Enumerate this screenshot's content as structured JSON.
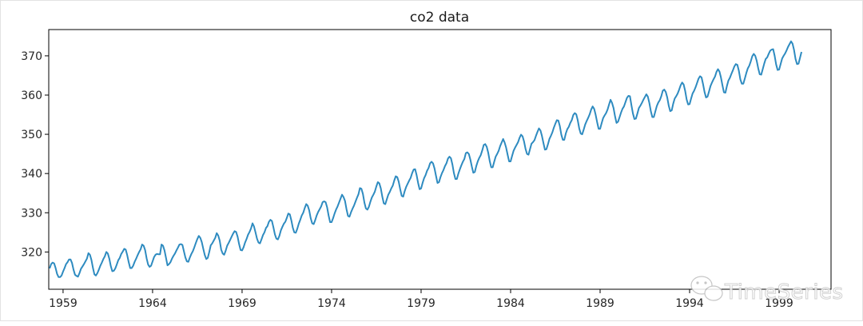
{
  "chart_data": {
    "type": "line",
    "title": "co2 data",
    "xlabel": "",
    "ylabel": "",
    "series": [
      {
        "name": "co2",
        "color": "#2e8bc0",
        "start_year": 1958.25,
        "step": 0.0833333,
        "values": [
          315.8,
          316.9,
          317.3,
          317.1,
          315.9,
          314.4,
          313.6,
          313.6,
          314.0,
          315.0,
          315.9,
          316.9,
          317.4,
          318.1,
          318.1,
          317.2,
          315.5,
          314.2,
          313.9,
          313.7,
          314.6,
          315.7,
          316.3,
          316.9,
          317.6,
          318.3,
          319.7,
          319.3,
          318.0,
          316.0,
          314.3,
          314.0,
          314.6,
          315.5,
          316.5,
          317.3,
          318.2,
          318.9,
          320.0,
          319.6,
          318.3,
          316.4,
          315.1,
          315.2,
          315.8,
          316.8,
          317.9,
          318.5,
          319.5,
          320.1,
          320.8,
          320.6,
          319.2,
          317.4,
          315.9,
          315.9,
          316.5,
          317.5,
          318.3,
          319.2,
          320.0,
          320.7,
          321.9,
          321.6,
          320.5,
          318.4,
          316.8,
          316.2,
          316.5,
          317.6,
          318.7,
          319.3,
          319.5,
          319.4,
          319.4,
          321.9,
          321.6,
          320.4,
          318.5,
          316.6,
          316.9,
          317.4,
          318.3,
          319.0,
          319.6,
          320.4,
          321.1,
          321.9,
          322.0,
          321.8,
          320.2,
          318.6,
          317.6,
          317.5,
          318.6,
          319.5,
          320.2,
          321.2,
          322.3,
          323.3,
          324.1,
          323.6,
          322.5,
          320.8,
          319.2,
          318.2,
          318.5,
          320.0,
          321.7,
          322.2,
          322.9,
          323.6,
          324.8,
          324.2,
          322.9,
          320.6,
          319.6,
          319.3,
          320.3,
          321.6,
          322.3,
          323.1,
          323.9,
          324.7,
          325.3,
          325.1,
          323.9,
          322.0,
          320.5,
          320.4,
          321.2,
          322.4,
          323.3,
          324.4,
          325.1,
          326.0,
          327.3,
          326.5,
          325.0,
          323.4,
          322.4,
          322.2,
          323.2,
          324.3,
          325.0,
          326.1,
          326.6,
          327.7,
          328.2,
          327.9,
          326.3,
          324.5,
          323.4,
          323.2,
          324.1,
          325.5,
          326.4,
          327.2,
          327.7,
          328.7,
          329.8,
          329.6,
          328.1,
          326.2,
          325.0,
          324.9,
          325.9,
          327.2,
          328.2,
          329.3,
          330.0,
          331.2,
          332.2,
          331.8,
          330.6,
          328.6,
          327.3,
          327.1,
          328.1,
          329.3,
          330.2,
          330.9,
          331.6,
          332.7,
          332.9,
          332.7,
          331.4,
          329.3,
          327.6,
          327.6,
          328.6,
          329.8,
          330.8,
          331.6,
          332.6,
          333.6,
          334.6,
          334.0,
          333.0,
          330.9,
          329.2,
          329.0,
          330.1,
          331.0,
          331.8,
          332.8,
          333.8,
          334.7,
          336.3,
          336.1,
          334.8,
          332.6,
          331.1,
          330.8,
          331.5,
          332.8,
          333.9,
          334.6,
          335.4,
          336.7,
          337.8,
          337.5,
          336.2,
          334.1,
          332.4,
          332.2,
          333.4,
          334.6,
          335.3,
          336.2,
          336.9,
          338.2,
          339.3,
          339.1,
          337.9,
          336.0,
          334.3,
          334.1,
          335.5,
          336.6,
          337.4,
          338.2,
          338.9,
          340.1,
          341.0,
          341.1,
          339.6,
          337.6,
          336.0,
          336.2,
          337.6,
          338.8,
          339.6,
          340.7,
          341.4,
          342.6,
          343.0,
          342.6,
          341.3,
          339.4,
          337.6,
          337.8,
          339.1,
          340.1,
          340.9,
          341.9,
          342.6,
          343.8,
          344.3,
          343.9,
          342.3,
          340.1,
          338.6,
          338.6,
          340.0,
          341.1,
          342.1,
          343.0,
          343.7,
          345.2,
          345.4,
          345.0,
          343.6,
          341.8,
          340.2,
          340.4,
          341.9,
          343.1,
          344.0,
          344.7,
          345.9,
          347.3,
          347.5,
          346.8,
          345.3,
          343.2,
          341.6,
          341.6,
          343.0,
          344.3,
          345.0,
          345.8,
          347.0,
          347.9,
          348.8,
          347.9,
          346.6,
          344.8,
          343.1,
          343.1,
          344.5,
          345.8,
          346.6,
          347.3,
          348.0,
          349.1,
          349.9,
          349.5,
          348.2,
          346.3,
          345.0,
          344.8,
          346.2,
          347.6,
          348.0,
          348.5,
          349.6,
          350.6,
          351.5,
          351.0,
          349.6,
          347.8,
          346.1,
          346.2,
          347.4,
          348.8,
          349.6,
          350.5,
          351.7,
          352.7,
          353.6,
          353.5,
          352.1,
          349.9,
          348.6,
          348.6,
          350.2,
          351.3,
          351.9,
          352.9,
          353.6,
          354.9,
          355.4,
          355.1,
          353.6,
          351.5,
          350.2,
          350.0,
          351.2,
          352.5,
          353.4,
          354.2,
          355.1,
          356.3,
          357.1,
          356.5,
          355.0,
          353.1,
          351.4,
          351.4,
          352.8,
          354.1,
          354.8,
          355.4,
          356.3,
          357.6,
          358.8,
          358.0,
          356.7,
          354.6,
          352.9,
          353.2,
          354.3,
          355.5,
          356.5,
          357.1,
          358.2,
          359.3,
          359.8,
          359.7,
          357.4,
          355.3,
          353.9,
          354.0,
          355.3,
          356.7,
          357.3,
          358.0,
          358.8,
          359.5,
          360.2,
          359.6,
          358.0,
          355.9,
          354.4,
          354.4,
          355.8,
          357.2,
          358.1,
          358.7,
          359.7,
          361.1,
          361.4,
          360.8,
          359.4,
          357.3,
          355.9,
          356.1,
          357.8,
          359.1,
          359.7,
          360.4,
          361.4,
          362.5,
          363.2,
          362.7,
          361.1,
          358.9,
          357.6,
          357.7,
          359.1,
          360.4,
          361.1,
          362.0,
          363.1,
          364.2,
          364.8,
          364.5,
          362.8,
          360.8,
          359.4,
          359.6,
          360.9,
          362.3,
          363.2,
          364.0,
          364.7,
          365.9,
          366.6,
          366.0,
          364.5,
          362.5,
          360.7,
          360.6,
          362.3,
          363.7,
          364.4,
          365.4,
          366.3,
          367.3,
          367.9,
          367.7,
          366.2,
          364.0,
          362.9,
          362.9,
          364.2,
          365.6,
          366.8,
          367.5,
          368.6,
          369.9,
          370.5,
          370.0,
          368.7,
          366.8,
          365.3,
          365.2,
          366.6,
          368.0,
          369.2,
          369.6,
          370.5,
          371.3,
          371.6,
          371.7,
          370.0,
          367.8,
          366.4,
          366.5,
          367.9,
          369.3,
          370.0,
          370.6,
          371.4,
          372.3,
          373.0,
          373.7,
          373.1,
          371.5,
          369.2,
          367.9,
          368.0,
          369.5,
          371.0
        ]
      }
    ],
    "xlim": [
      1958.2,
      2001.9
    ],
    "ylim": [
      310.5,
      376.7
    ],
    "xticks": [
      1959,
      1964,
      1969,
      1974,
      1979,
      1984,
      1989,
      1994,
      1999
    ],
    "xtick_labels": [
      "1959",
      "1964",
      "1969",
      "1974",
      "1979",
      "1984",
      "1989",
      "1994",
      "1999"
    ],
    "yticks": [
      320,
      330,
      340,
      350,
      360,
      370
    ],
    "ytick_labels": [
      "320",
      "330",
      "340",
      "350",
      "360",
      "370"
    ],
    "grid": false,
    "legend": "none"
  },
  "watermark": {
    "text": "TimeSeries",
    "icon": "wechat-icon"
  }
}
